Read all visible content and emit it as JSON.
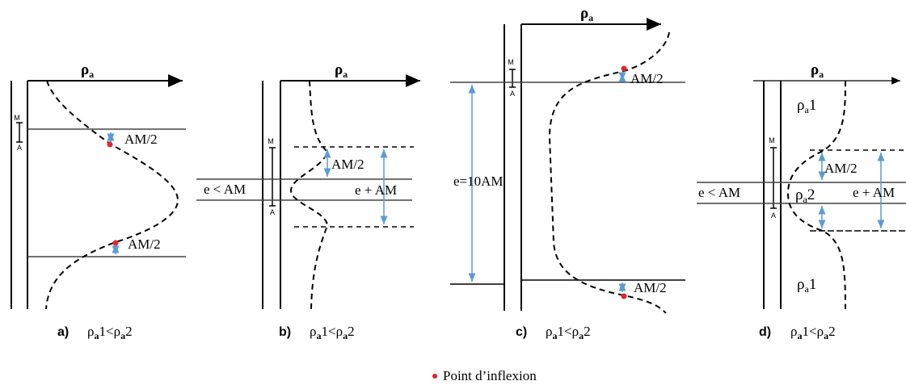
{
  "axis_label": "ρ",
  "axis_sub": "a",
  "electrode_m": "M",
  "electrode_a": "A",
  "am_half": "AM/2",
  "thin_layer": "e < AM",
  "thick_layer": "e=10AM",
  "e_plus_am": "e + AM",
  "e_plus_am_d": "e + AM",
  "layer_1": "1",
  "layer_2": "2",
  "panels": {
    "a": {
      "letter": "a)",
      "c1": "1<",
      "c2": "2"
    },
    "b": {
      "letter": "b)",
      "c1": "1<",
      "c2": "2"
    },
    "c": {
      "letter": "c)",
      "c1": "1<",
      "c2": "2"
    },
    "d": {
      "letter": "d)",
      "c1": "1<",
      "c2": "2"
    }
  },
  "legend": "Point d’inflexion",
  "colors": {
    "inflexion": "#e0262b",
    "measure": "#5b9bd5",
    "line": "#000000"
  }
}
